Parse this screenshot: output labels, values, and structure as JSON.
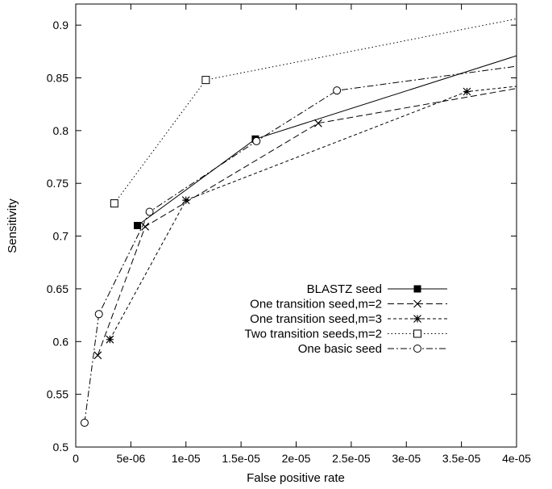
{
  "chart_data": {
    "type": "line",
    "xlabel": "False positive rate",
    "ylabel": "Sensitivity",
    "xlim": [
      0,
      4e-05
    ],
    "ylim": [
      0.5,
      0.92
    ],
    "xticks": [
      {
        "value": 0,
        "label": "0"
      },
      {
        "value": 5e-06,
        "label": "5e-06"
      },
      {
        "value": 1e-05,
        "label": "1e-05"
      },
      {
        "value": 1.5e-05,
        "label": "1.5e-05"
      },
      {
        "value": 2e-05,
        "label": "2e-05"
      },
      {
        "value": 2.5e-05,
        "label": "2.5e-05"
      },
      {
        "value": 3e-05,
        "label": "3e-05"
      },
      {
        "value": 3.5e-05,
        "label": "3.5e-05"
      },
      {
        "value": 4e-05,
        "label": "4e-05"
      }
    ],
    "yticks": [
      {
        "value": 0.5,
        "label": "0.5"
      },
      {
        "value": 0.55,
        "label": "0.55"
      },
      {
        "value": 0.6,
        "label": "0.6"
      },
      {
        "value": 0.65,
        "label": "0.65"
      },
      {
        "value": 0.7,
        "label": "0.7"
      },
      {
        "value": 0.75,
        "label": "0.75"
      },
      {
        "value": 0.8,
        "label": "0.8"
      },
      {
        "value": 0.85,
        "label": "0.85"
      },
      {
        "value": 0.9,
        "label": "0.9"
      }
    ],
    "grid": false,
    "legend_position": "bottom-right",
    "series": [
      {
        "name": "BLASTZ seed",
        "line_style": "solid",
        "marker": "filled-square",
        "color": "#000000",
        "x": [
          5.6e-06,
          1.63e-05,
          4e-05
        ],
        "y": [
          0.71,
          0.792,
          0.871
        ],
        "marker_indices": [
          0,
          1
        ]
      },
      {
        "name": "One transition seed,m=2",
        "line_style": "dashed",
        "marker": "cross",
        "color": "#000000",
        "x": [
          2e-06,
          6.3e-06,
          2.2e-05,
          4e-05
        ],
        "y": [
          0.587,
          0.709,
          0.807,
          0.84
        ],
        "marker_indices": [
          0,
          1,
          2
        ]
      },
      {
        "name": "One transition seed,m=3",
        "line_style": "short-dashed",
        "marker": "star",
        "color": "#000000",
        "x": [
          3.1e-06,
          1e-05,
          3.55e-05,
          4e-05
        ],
        "y": [
          0.602,
          0.734,
          0.837,
          0.842
        ],
        "marker_indices": [
          0,
          1,
          2
        ]
      },
      {
        "name": "Two transition seeds,m=2",
        "line_style": "dotted",
        "marker": "open-square",
        "color": "#000000",
        "x": [
          3.5e-06,
          1.18e-05,
          4e-05
        ],
        "y": [
          0.731,
          0.848,
          0.906
        ],
        "marker_indices": [
          0,
          1
        ]
      },
      {
        "name": "One basic seed",
        "line_style": "dash-dot",
        "marker": "open-circle",
        "color": "#000000",
        "x": [
          8e-07,
          2.1e-06,
          6.7e-06,
          1.64e-05,
          2.37e-05,
          4e-05
        ],
        "y": [
          0.523,
          0.626,
          0.723,
          0.79,
          0.838,
          0.861
        ],
        "marker_indices": [
          0,
          1,
          2,
          3,
          4
        ]
      }
    ]
  }
}
